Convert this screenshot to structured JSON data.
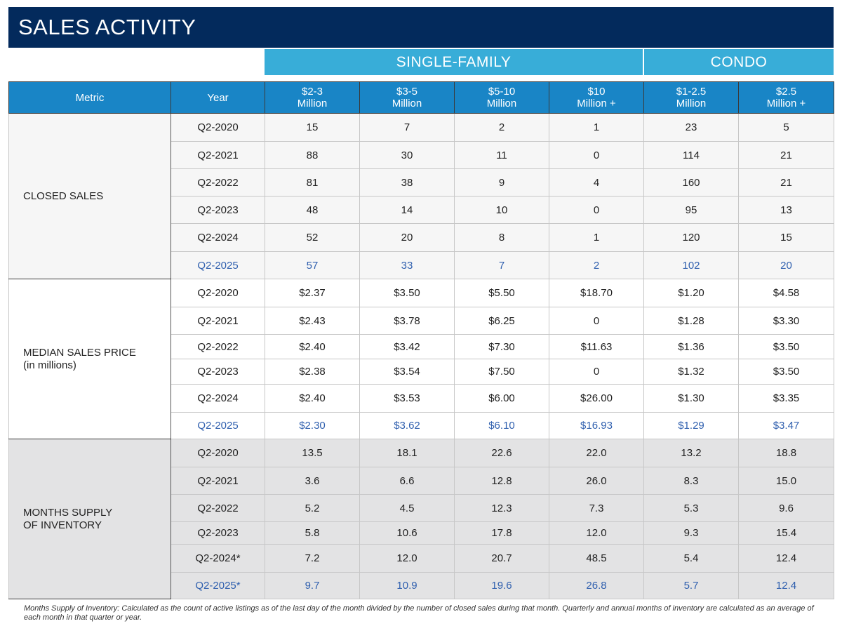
{
  "title": "SALES ACTIVITY",
  "groups": {
    "single_family": "SINGLE-FAMILY",
    "condo": "CONDO"
  },
  "headers": {
    "metric": "Metric",
    "year": "Year",
    "cols": [
      [
        "$2-3",
        "Million"
      ],
      [
        "$3-5",
        "Million"
      ],
      [
        "$5-10",
        "Million"
      ],
      [
        "$10",
        "Million +"
      ],
      [
        "$1-2.5",
        "Million"
      ],
      [
        "$2.5",
        "Million +"
      ]
    ]
  },
  "sections": [
    {
      "metric": [
        "CLOSED SALES"
      ],
      "rows": [
        {
          "year": "Q2-2020",
          "values": [
            "15",
            "7",
            "2",
            "1",
            "23",
            "5"
          ]
        },
        {
          "year": "Q2-2021",
          "values": [
            "88",
            "30",
            "11",
            "0",
            "114",
            "21"
          ]
        },
        {
          "year": "Q2-2022",
          "values": [
            "81",
            "38",
            "9",
            "4",
            "160",
            "21"
          ]
        },
        {
          "year": "Q2-2023",
          "values": [
            "48",
            "14",
            "10",
            "0",
            "95",
            "13"
          ]
        },
        {
          "year": "Q2-2024",
          "values": [
            "52",
            "20",
            "8",
            "1",
            "120",
            "15"
          ]
        },
        {
          "year": "Q2-2025",
          "values": [
            "57",
            "33",
            "7",
            "2",
            "102",
            "20"
          ]
        }
      ]
    },
    {
      "metric": [
        "MEDIAN SALES PRICE",
        "(in millions)"
      ],
      "rows": [
        {
          "year": "Q2-2020",
          "values": [
            "$2.37",
            "$3.50",
            "$5.50",
            "$18.70",
            "$1.20",
            "$4.58"
          ]
        },
        {
          "year": "Q2-2021",
          "values": [
            "$2.43",
            "$3.78",
            "$6.25",
            "0",
            "$1.28",
            "$3.30"
          ]
        },
        {
          "year": "Q2-2022",
          "values": [
            "$2.40",
            "$3.42",
            "$7.30",
            "$11.63",
            "$1.36",
            "$3.50"
          ]
        },
        {
          "year": "Q2-2023",
          "values": [
            "$2.38",
            "$3.54",
            "$7.50",
            "0",
            "$1.32",
            "$3.50"
          ]
        },
        {
          "year": "Q2-2024",
          "values": [
            "$2.40",
            "$3.53",
            "$6.00",
            "$26.00",
            "$1.30",
            "$3.35"
          ]
        },
        {
          "year": "Q2-2025",
          "values": [
            "$2.30",
            "$3.62",
            "$6.10",
            "$16.93",
            "$1.29",
            "$3.47"
          ]
        }
      ]
    },
    {
      "metric": [
        "MONTHS SUPPLY",
        "OF  INVENTORY"
      ],
      "rows": [
        {
          "year": "Q2-2020",
          "values": [
            "13.5",
            "18.1",
            "22.6",
            "22.0",
            "13.2",
            "18.8"
          ]
        },
        {
          "year": "Q2-2021",
          "values": [
            "3.6",
            "6.6",
            "12.8",
            "26.0",
            "8.3",
            "15.0"
          ]
        },
        {
          "year": "Q2-2022",
          "values": [
            "5.2",
            "4.5",
            "12.3",
            "7.3",
            "5.3",
            "9.6"
          ]
        },
        {
          "year": "Q2-2023",
          "values": [
            "5.8",
            "10.6",
            "17.8",
            "12.0",
            "9.3",
            "15.4"
          ]
        },
        {
          "year": "Q2-2024*",
          "values": [
            "7.2",
            "12.0",
            "20.7",
            "48.5",
            "5.4",
            "12.4"
          ]
        },
        {
          "year": "Q2-2025*",
          "values": [
            "9.7",
            "10.9",
            "19.6",
            "26.8",
            "5.7",
            "12.4"
          ]
        }
      ]
    }
  ],
  "highlight_color": "#2f5fae",
  "footnote": "Months Supply of Inventory: Calculated as the count of active listings as of the last day of the month divided by the number of closed sales during that month. Quarterly and annual months of inventory are calculated as an average of each month in that quarter or year."
}
